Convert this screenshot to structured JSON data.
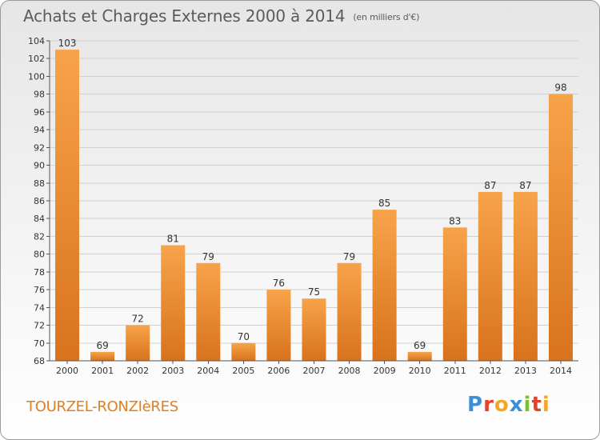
{
  "chart_data": {
    "type": "bar",
    "title": "Achats et Charges Externes 2000 à 2014",
    "subtitle": "(en milliers d'€)",
    "categories": [
      "2000",
      "2001",
      "2002",
      "2003",
      "2004",
      "2005",
      "2006",
      "2007",
      "2008",
      "2009",
      "2010",
      "2011",
      "2012",
      "2013",
      "2014"
    ],
    "values": [
      103,
      69,
      72,
      81,
      79,
      70,
      76,
      75,
      79,
      85,
      69,
      83,
      87,
      87,
      98
    ],
    "ylim": [
      68,
      104
    ],
    "yticks": [
      68,
      70,
      72,
      74,
      76,
      78,
      80,
      82,
      84,
      86,
      88,
      90,
      92,
      94,
      96,
      98,
      100,
      102,
      104
    ],
    "xlabel": "",
    "ylabel": "",
    "grid": true
  },
  "footer": {
    "commune": "TOURZEL-RONZIèRES",
    "logo": "Proxiti"
  },
  "colors": {
    "bar_light": "#f7a34a",
    "bar_dark": "#d8731c",
    "grid": "#d0d0d0",
    "axis_text": "#333333",
    "commune": "#e08020"
  }
}
